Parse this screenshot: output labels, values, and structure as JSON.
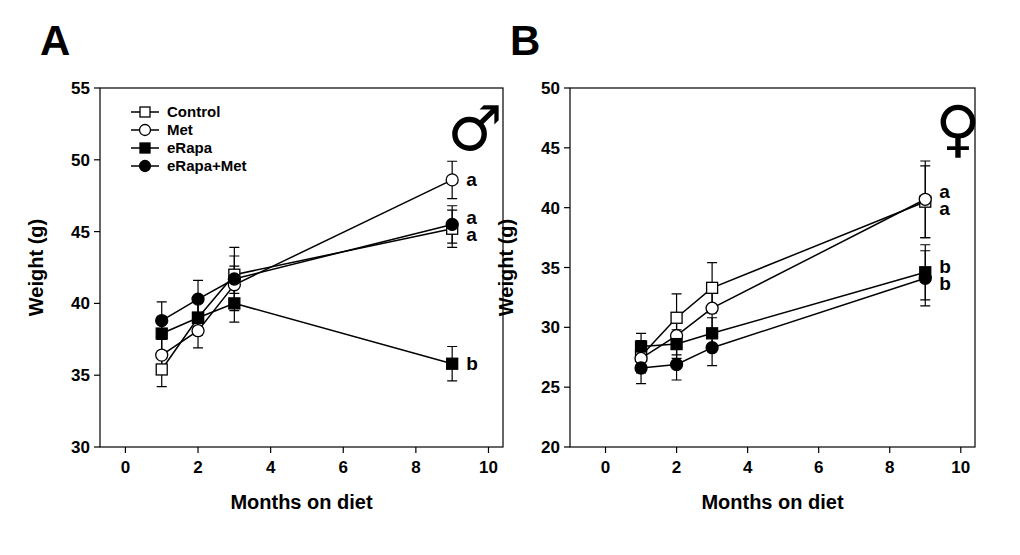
{
  "chart_data": [
    {
      "type": "line",
      "panel_label": "A",
      "symbol": "♂",
      "x_label": "Months on diet",
      "y_label": "Weight (g)",
      "x": [
        1,
        2,
        3,
        9
      ],
      "xlim": [
        -0.7,
        10.4
      ],
      "xticks": [
        0,
        2,
        4,
        6,
        8,
        10
      ],
      "ylim": [
        30,
        55
      ],
      "yticks": [
        30,
        35,
        40,
        45,
        50,
        55
      ],
      "grid": false,
      "legend": "upper left",
      "series": [
        {
          "name": "Control",
          "color": "#000000",
          "marker": "square-open",
          "values": [
            35.4,
            39.0,
            42.0,
            45.2
          ],
          "errors": [
            1.2,
            1.1,
            1.3,
            1.3
          ],
          "letter": "a"
        },
        {
          "name": "Met",
          "color": "#000000",
          "marker": "circle-open",
          "values": [
            36.4,
            38.1,
            41.3,
            48.6
          ],
          "errors": [
            1.2,
            1.2,
            1.3,
            1.3
          ],
          "letter": "a"
        },
        {
          "name": "eRapa",
          "color": "#000000",
          "marker": "square",
          "values": [
            37.9,
            39.0,
            40.0,
            35.8
          ],
          "errors": [
            1.2,
            1.2,
            1.3,
            1.2
          ],
          "letter": "b"
        },
        {
          "name": "eRapa+Met",
          "color": "#000000",
          "marker": "circle",
          "values": [
            38.8,
            40.3,
            41.7,
            45.5
          ],
          "errors": [
            1.3,
            1.3,
            2.2,
            1.3
          ],
          "letter": "a"
        }
      ]
    },
    {
      "type": "line",
      "panel_label": "B",
      "symbol": "♀",
      "x_label": "Months on diet",
      "y_label": "Weight (g)",
      "x": [
        1,
        2,
        3,
        9
      ],
      "xlim": [
        -1.0,
        10.4
      ],
      "xticks": [
        0,
        2,
        4,
        6,
        8,
        10
      ],
      "ylim": [
        20,
        50
      ],
      "yticks": [
        20,
        25,
        30,
        35,
        40,
        45,
        50
      ],
      "grid": false,
      "series": [
        {
          "color": "#000000",
          "marker": "square-open",
          "values": [
            27.6,
            30.8,
            33.3,
            40.5
          ],
          "errors": [
            1.3,
            2.0,
            2.1,
            3.0
          ],
          "letter": "a"
        },
        {
          "color": "#000000",
          "marker": "circle-open",
          "values": [
            27.4,
            29.3,
            31.6,
            40.7
          ],
          "errors": [
            1.2,
            1.6,
            1.7,
            3.2
          ],
          "letter": "a"
        },
        {
          "color": "#000000",
          "marker": "square",
          "values": [
            28.4,
            28.6,
            29.5,
            34.6
          ],
          "errors": [
            1.1,
            1.2,
            1.3,
            2.3
          ],
          "letter": "b"
        },
        {
          "color": "#000000",
          "marker": "circle",
          "values": [
            26.6,
            26.9,
            28.3,
            34.1
          ],
          "errors": [
            1.3,
            1.3,
            1.5,
            2.3
          ],
          "letter": "b"
        }
      ]
    }
  ]
}
